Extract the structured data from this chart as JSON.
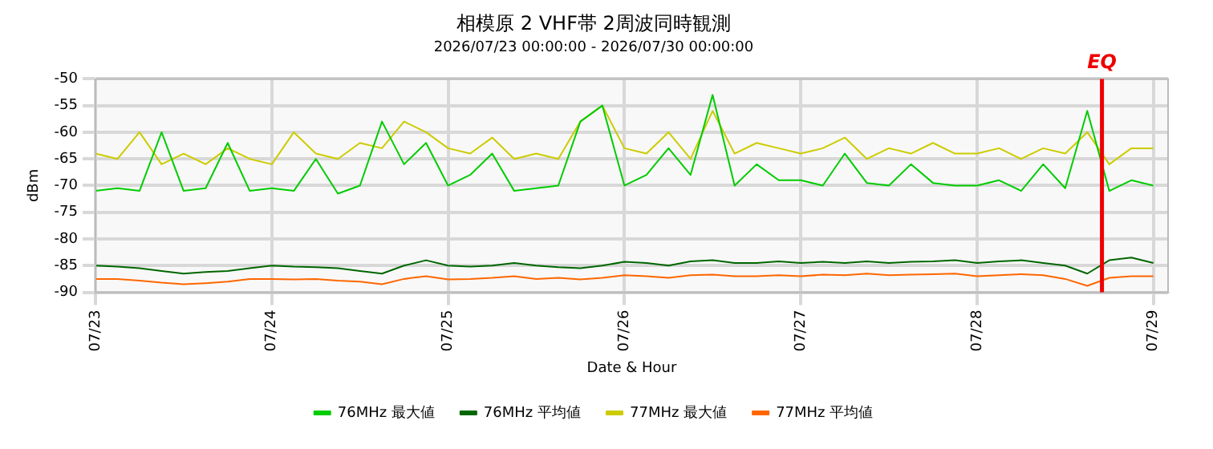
{
  "chart_data": {
    "type": "line",
    "title": "相模原 2 VHF帯 2周波同時観測",
    "subtitle": "2026/07/23 00:00:00 - 2026/07/30 00:00:00",
    "xlabel": "Date & Hour",
    "ylabel": "dBm",
    "x": [
      "2026-07-23T00:00",
      "2026-07-23T03:00",
      "2026-07-23T06:00",
      "2026-07-23T09:00",
      "2026-07-23T12:00",
      "2026-07-23T15:00",
      "2026-07-23T18:00",
      "2026-07-23T21:00",
      "2026-07-24T00:00",
      "2026-07-24T03:00",
      "2026-07-24T06:00",
      "2026-07-24T09:00",
      "2026-07-24T12:00",
      "2026-07-24T15:00",
      "2026-07-24T18:00",
      "2026-07-24T21:00",
      "2026-07-25T00:00",
      "2026-07-25T03:00",
      "2026-07-25T06:00",
      "2026-07-25T09:00",
      "2026-07-25T12:00",
      "2026-07-25T15:00",
      "2026-07-25T18:00",
      "2026-07-25T21:00",
      "2026-07-26T00:00",
      "2026-07-26T03:00",
      "2026-07-26T06:00",
      "2026-07-26T09:00",
      "2026-07-26T12:00",
      "2026-07-26T15:00",
      "2026-07-26T18:00",
      "2026-07-26T21:00",
      "2026-07-27T00:00",
      "2026-07-27T03:00",
      "2026-07-27T06:00",
      "2026-07-27T09:00",
      "2026-07-27T12:00",
      "2026-07-27T15:00",
      "2026-07-27T18:00",
      "2026-07-27T21:00",
      "2026-07-28T00:00",
      "2026-07-28T03:00",
      "2026-07-28T06:00",
      "2026-07-28T09:00",
      "2026-07-28T12:00",
      "2026-07-28T15:00",
      "2026-07-28T18:00",
      "2026-07-28T21:00",
      "2026-07-29T00:00"
    ],
    "series": [
      {
        "name": "76MHz 最大値",
        "color": "#00cc00",
        "values": [
          -71,
          -70.5,
          -71,
          -60,
          -71,
          -70.5,
          -62,
          -71,
          -70.5,
          -71,
          -65,
          -71.5,
          -70,
          -58,
          -66,
          -62,
          -70,
          -68,
          -64,
          -71,
          -70.5,
          -70,
          -58,
          -55,
          -70,
          -68,
          -63,
          -68,
          -53,
          -70,
          -66,
          -69,
          -69,
          -70,
          -64,
          -69.5,
          -70,
          -66,
          -69.5,
          -70,
          -70,
          -69,
          -71,
          -66,
          -70.5,
          -56,
          -71,
          -69,
          -70
        ]
      },
      {
        "name": "76MHz 平均値",
        "color": "#006600",
        "values": [
          -85,
          -85.2,
          -85.5,
          -86,
          -86.5,
          -86.2,
          -86,
          -85.5,
          -85,
          -85.2,
          -85.3,
          -85.5,
          -86,
          -86.5,
          -85,
          -84,
          -85,
          -85.2,
          -85,
          -84.5,
          -85,
          -85.3,
          -85.5,
          -85,
          -84.3,
          -84.5,
          -85,
          -84.2,
          -84,
          -84.5,
          -84.5,
          -84.2,
          -84.5,
          -84.3,
          -84.5,
          -84.2,
          -84.5,
          -84.3,
          -84.2,
          -84,
          -84.5,
          -84.2,
          -84,
          -84.5,
          -85,
          -86.5,
          -84,
          -83.5,
          -84.5
        ]
      },
      {
        "name": "77MHz 最大値",
        "color": "#cccc00",
        "values": [
          -64,
          -65,
          -60,
          -66,
          -64,
          -66,
          -63,
          -65,
          -66,
          -60,
          -64,
          -65,
          -62,
          -63,
          -58,
          -60,
          -63,
          -64,
          -61,
          -65,
          -64,
          -65,
          -58,
          -55,
          -63,
          -64,
          -60,
          -65,
          -56,
          -64,
          -62,
          -63,
          -64,
          -63,
          -61,
          -65,
          -63,
          -64,
          -62,
          -64,
          -64,
          -63,
          -65,
          -63,
          -64,
          -60,
          -66,
          -63,
          -63
        ]
      },
      {
        "name": "77MHz 平均値",
        "color": "#ff6600",
        "values": [
          -87.5,
          -87.5,
          -87.8,
          -88.2,
          -88.5,
          -88.3,
          -88,
          -87.5,
          -87.5,
          -87.6,
          -87.5,
          -87.8,
          -88,
          -88.5,
          -87.5,
          -87,
          -87.6,
          -87.5,
          -87.3,
          -87,
          -87.5,
          -87.3,
          -87.6,
          -87.3,
          -86.8,
          -87,
          -87.3,
          -86.8,
          -86.7,
          -87,
          -87,
          -86.8,
          -87,
          -86.7,
          -86.8,
          -86.5,
          -86.8,
          -86.7,
          -86.6,
          -86.5,
          -87,
          -86.8,
          -86.6,
          -86.8,
          -87.5,
          -88.8,
          -87.3,
          -87,
          -87
        ]
      }
    ],
    "xlim": [
      "2026-07-23T00:00",
      "2026-07-29T02:00"
    ],
    "xticks": [
      {
        "value": "2026-07-23",
        "label": "07/23"
      },
      {
        "value": "2026-07-24",
        "label": "07/24"
      },
      {
        "value": "2026-07-25",
        "label": "07/25"
      },
      {
        "value": "2026-07-26",
        "label": "07/26"
      },
      {
        "value": "2026-07-27",
        "label": "07/27"
      },
      {
        "value": "2026-07-28",
        "label": "07/28"
      },
      {
        "value": "2026-07-29",
        "label": "07/29"
      }
    ],
    "ylim": [
      -90,
      -50
    ],
    "yticks": [
      -90,
      -85,
      -80,
      -75,
      -70,
      -65,
      -60,
      -55,
      -50
    ],
    "ref_lines": [
      {
        "axis": "x",
        "value": "2026-07-28T17:00",
        "label": "EQ",
        "color": "#ee0000"
      }
    ],
    "grid": true,
    "legend": "bottom",
    "marker": "none",
    "line_style": "solid"
  }
}
